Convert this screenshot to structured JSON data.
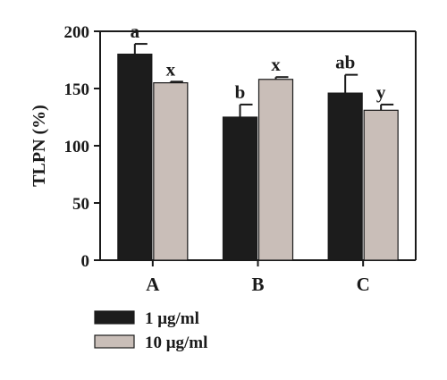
{
  "chart_data": {
    "type": "bar",
    "title": "",
    "xlabel": "",
    "ylabel": "TLPN (%)",
    "ylim": [
      0,
      200
    ],
    "yticks": [
      0,
      50,
      100,
      150,
      200
    ],
    "grid": false,
    "legend_placement": "bottom-left",
    "categories": [
      "A",
      "B",
      "C"
    ],
    "series": [
      {
        "name": "1 μg/ml",
        "color": "#1c1c1c",
        "values": [
          180,
          125,
          146
        ],
        "errors": [
          9,
          11,
          16
        ],
        "labels": [
          "a",
          "b",
          "ab"
        ]
      },
      {
        "name": "10 μg/ml",
        "color": "#c9beb8",
        "values": [
          155,
          158,
          131
        ],
        "errors": [
          1,
          2,
          5
        ],
        "labels": [
          "x",
          "x",
          "y"
        ]
      }
    ]
  }
}
